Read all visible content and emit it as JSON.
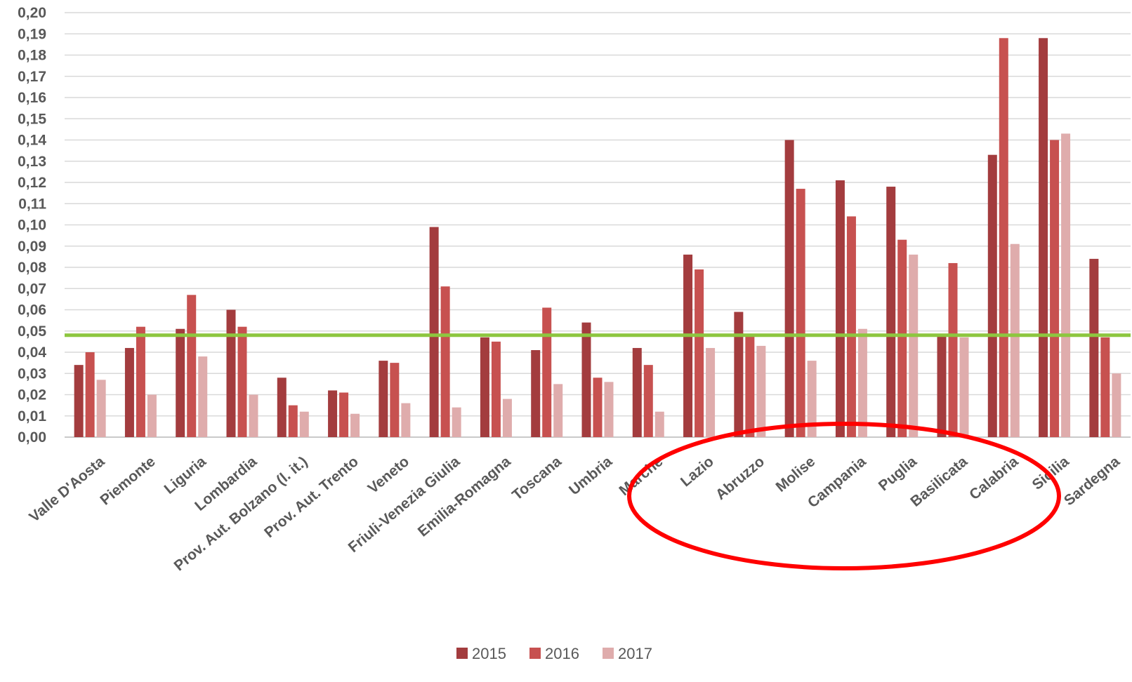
{
  "chart_data": {
    "type": "bar",
    "title": "",
    "xlabel": "",
    "ylabel": "",
    "ylim": [
      0,
      0.2
    ],
    "ytick_step": 0.01,
    "yticks": [
      "0,00",
      "0,01",
      "0,02",
      "0,03",
      "0,04",
      "0,05",
      "0,06",
      "0,07",
      "0,08",
      "0,09",
      "0,10",
      "0,11",
      "0,12",
      "0,13",
      "0,14",
      "0,15",
      "0,16",
      "0,17",
      "0,18",
      "0,19",
      "0,20"
    ],
    "grid": true,
    "legend_position": "bottom",
    "categories": [
      "Valle D'Aosta",
      "Piemonte",
      "Liguria",
      "Lombardia",
      "Prov. Aut. Bolzano (l. it.)",
      "Prov. Aut. Trento",
      "Veneto",
      "Friuli-Venezia Giulia",
      "Emilia-Romagna",
      "Toscana",
      "Umbria",
      "Marche",
      "Lazio",
      "Abruzzo",
      "Molise",
      "Campania",
      "Puglia",
      "Basilicata",
      "Calabria",
      "Sicilia",
      "Sardegna"
    ],
    "series": [
      {
        "name": "2015",
        "color": "#a33c3e",
        "values": [
          0.034,
          0.042,
          0.051,
          0.06,
          0.028,
          0.022,
          0.036,
          0.099,
          0.047,
          0.041,
          0.054,
          0.042,
          0.086,
          0.059,
          0.14,
          0.121,
          0.118,
          0.048,
          0.133,
          0.188,
          0.084
        ]
      },
      {
        "name": "2016",
        "color": "#c75150",
        "values": [
          0.04,
          0.052,
          0.067,
          0.052,
          0.015,
          0.021,
          0.035,
          0.071,
          0.045,
          0.061,
          0.028,
          0.034,
          0.079,
          0.048,
          0.117,
          0.104,
          0.093,
          0.082,
          0.188,
          0.14,
          0.047
        ]
      },
      {
        "name": "2017",
        "color": "#dfacac",
        "values": [
          0.027,
          0.02,
          0.038,
          0.02,
          0.012,
          0.011,
          0.016,
          0.014,
          0.018,
          0.025,
          0.026,
          0.012,
          0.042,
          0.043,
          0.036,
          0.051,
          0.086,
          0.047,
          0.091,
          0.143,
          0.03
        ]
      }
    ],
    "reference_line": {
      "value": 0.048,
      "color": "#8dc63f"
    },
    "annotation_ellipse_color": "#ff0000"
  }
}
